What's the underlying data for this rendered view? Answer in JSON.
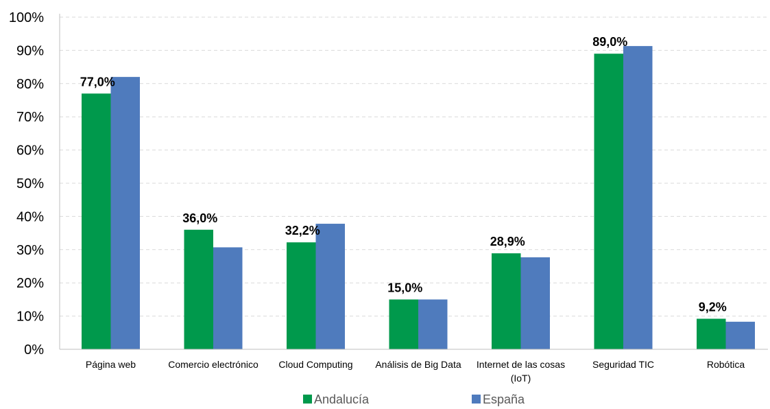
{
  "chart_data": {
    "type": "bar",
    "title": "",
    "xlabel": "",
    "ylabel": "",
    "ylim": [
      0,
      100
    ],
    "y_ticks": [
      "0%",
      "10%",
      "20%",
      "30%",
      "40%",
      "50%",
      "60%",
      "70%",
      "80%",
      "90%",
      "100%"
    ],
    "grid": "horizontal dashed",
    "legend_position": "bottom",
    "categories": [
      [
        "Página web"
      ],
      [
        "Comercio electrónico"
      ],
      [
        "Cloud Computing"
      ],
      [
        "Análisis de Big Data"
      ],
      [
        "Internet de las cosas",
        "(IoT)"
      ],
      [
        "Seguridad TIC"
      ],
      [
        "Robótica"
      ]
    ],
    "series": [
      {
        "name": "Andalucía",
        "color": "#00994c",
        "values": [
          77.0,
          36.0,
          32.2,
          15.0,
          28.9,
          89.0,
          9.2
        ]
      },
      {
        "name": "España",
        "color": "#4f7bbd",
        "values": [
          82.0,
          30.7,
          37.8,
          15.0,
          27.7,
          91.3,
          8.3
        ]
      }
    ],
    "data_labels": [
      "77,0%",
      "36,0%",
      "32,2%",
      "15,0%",
      "28,9%",
      "89,0%",
      "9,2%"
    ]
  }
}
